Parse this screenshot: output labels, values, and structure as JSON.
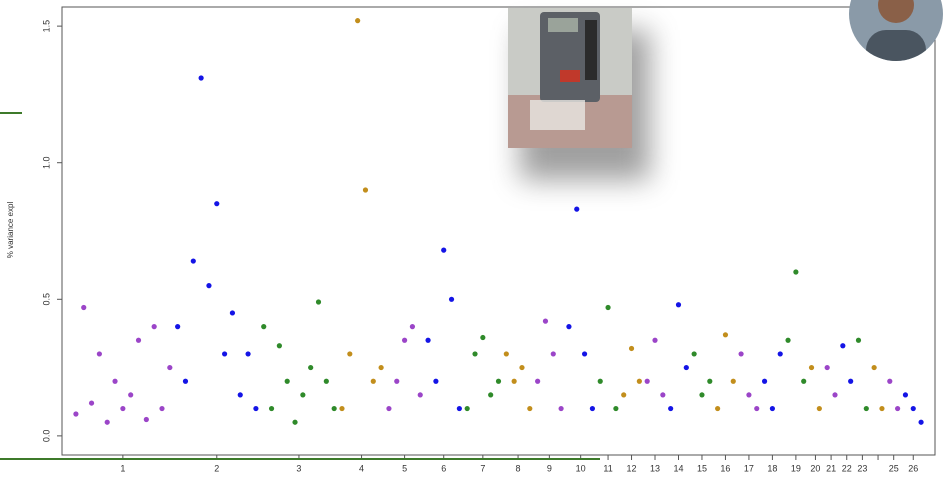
{
  "chart_data": {
    "type": "scatter",
    "y_label": "% variance expl",
    "ylim": [
      -0.07,
      1.57
    ],
    "yticks": [
      {
        "value": 0,
        "label": "0.0"
      },
      {
        "value": 0.5,
        "label": "0.5"
      },
      {
        "value": 1,
        "label": "1.0"
      },
      {
        "value": 1.5,
        "label": "1.5"
      }
    ],
    "categories": [
      "1",
      "2",
      "3",
      "4",
      "5",
      "6",
      "7",
      "8",
      "9",
      "10",
      "11",
      "12",
      "13",
      "14",
      "15",
      "16",
      "17",
      "18",
      "19",
      "20",
      "21",
      "22",
      "23",
      null,
      "25",
      "26"
    ],
    "series": [
      {
        "color": "#9b45c8",
        "values": [
          0.08,
          0.47,
          0.12,
          0.3,
          0.05,
          0.2,
          0.1,
          0.15,
          0.35,
          0.06,
          0.4,
          0.1,
          0.25
        ]
      },
      {
        "color": "#1414e6",
        "values": [
          0.4,
          0.2,
          0.64,
          1.31,
          0.55,
          0.85,
          0.3,
          0.45,
          0.15,
          0.3,
          0.1
        ]
      },
      {
        "color": "#2f8a2a",
        "values": [
          0.4,
          0.1,
          0.33,
          0.2,
          0.05,
          0.15,
          0.25,
          0.49,
          0.2,
          0.1
        ]
      },
      {
        "color": "#c28e1c",
        "values": [
          0.1,
          0.3,
          1.52,
          0.9,
          0.2,
          0.25
        ]
      },
      {
        "color": "#9b45c8",
        "values": [
          0.1,
          0.2,
          0.35,
          0.4,
          0.15
        ]
      },
      {
        "color": "#1414e6",
        "values": [
          0.35,
          0.2,
          0.68,
          0.5,
          0.1
        ]
      },
      {
        "color": "#2f8a2a",
        "values": [
          0.1,
          0.3,
          0.36,
          0.15,
          0.2
        ]
      },
      {
        "color": "#c28e1c",
        "values": [
          0.3,
          0.2,
          0.25,
          0.1
        ]
      },
      {
        "color": "#9b45c8",
        "values": [
          0.2,
          0.42,
          0.3,
          0.1
        ]
      },
      {
        "color": "#1414e6",
        "values": [
          0.4,
          0.83,
          0.3,
          0.1
        ]
      },
      {
        "color": "#2f8a2a",
        "values": [
          0.2,
          0.47,
          0.1
        ]
      },
      {
        "color": "#c28e1c",
        "values": [
          0.15,
          0.32,
          0.2
        ]
      },
      {
        "color": "#9b45c8",
        "values": [
          0.2,
          0.35,
          0.15
        ]
      },
      {
        "color": "#1414e6",
        "values": [
          0.1,
          0.48,
          0.25
        ]
      },
      {
        "color": "#2f8a2a",
        "values": [
          0.3,
          0.15,
          0.2
        ]
      },
      {
        "color": "#c28e1c",
        "values": [
          0.1,
          0.37,
          0.2
        ]
      },
      {
        "color": "#9b45c8",
        "values": [
          0.3,
          0.15,
          0.1
        ]
      },
      {
        "color": "#1414e6",
        "values": [
          0.2,
          0.1,
          0.3
        ]
      },
      {
        "color": "#2f8a2a",
        "values": [
          0.35,
          0.6,
          0.2
        ]
      },
      {
        "color": "#c28e1c",
        "values": [
          0.25,
          0.1
        ]
      },
      {
        "color": "#9b45c8",
        "values": [
          0.25,
          0.15
        ]
      },
      {
        "color": "#1414e6",
        "values": [
          0.33,
          0.2
        ]
      },
      {
        "color": "#2f8a2a",
        "values": [
          0.35,
          0.1
        ]
      },
      {
        "color": "#c28e1c",
        "values": [
          0.25,
          0.1
        ]
      },
      {
        "color": "#9b45c8",
        "values": [
          0.2,
          0.1
        ]
      },
      {
        "color": "#1414e6",
        "values": [
          0.15,
          0.1,
          0.05
        ]
      }
    ]
  }
}
